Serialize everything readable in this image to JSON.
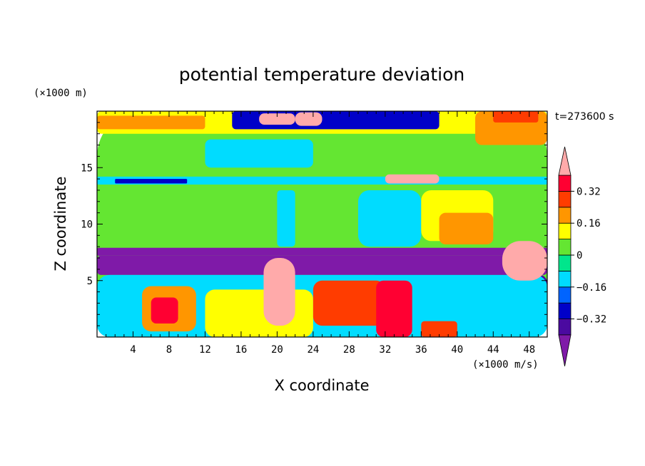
{
  "chart_data": {
    "type": "heatmap",
    "title": "potential temperature deviation",
    "xlabel": "X coordinate",
    "ylabel": "Z coordinate",
    "x_unit": "(×1000 m/s)",
    "y_unit": "(×1000 m)",
    "time_label": "t=273600 s",
    "xlim": [
      0,
      50
    ],
    "ylim": [
      0,
      20
    ],
    "x_ticks": [
      4,
      8,
      12,
      16,
      20,
      24,
      28,
      32,
      36,
      40,
      44,
      48
    ],
    "y_ticks": [
      5,
      10,
      15
    ],
    "colorbar": {
      "levels": [
        -0.4,
        -0.32,
        -0.24,
        -0.16,
        -0.08,
        0,
        0.08,
        0.16,
        0.24,
        0.32,
        0.4
      ],
      "tick_labels": [
        "0.32",
        "0.16",
        "0",
        "−0.16",
        "−0.32"
      ],
      "tick_values": [
        0.32,
        0.16,
        0,
        -0.16,
        -0.32
      ],
      "colors": {
        "under": "#7f1aa8",
        "bins": [
          "#4b0aa0",
          "#0000c8",
          "#0064ff",
          "#00dcff",
          "#00e68c",
          "#64e632",
          "#ffff00",
          "#ff9600",
          "#ff3c00",
          "#ff0032"
        ],
        "over": "#ffaaaa"
      }
    },
    "regions": [
      {
        "x": [
          0,
          50
        ],
        "z": [
          0,
          20
        ],
        "value": 0.0
      },
      {
        "x": [
          0,
          50
        ],
        "z": [
          18,
          20
        ],
        "value": 0.12
      },
      {
        "x": [
          0,
          12
        ],
        "z": [
          18.4,
          19.6
        ],
        "value": 0.18
      },
      {
        "x": [
          42,
          50
        ],
        "z": [
          17,
          20
        ],
        "value": 0.2
      },
      {
        "x": [
          44,
          49
        ],
        "z": [
          19,
          20
        ],
        "value": 0.26
      },
      {
        "x": [
          15,
          38
        ],
        "z": [
          18.4,
          20
        ],
        "value": -0.25
      },
      {
        "x": [
          12,
          24
        ],
        "z": [
          15,
          17.5
        ],
        "value": -0.1
      },
      {
        "x": [
          0,
          50
        ],
        "z": [
          13.5,
          14.2
        ],
        "value": -0.16
      },
      {
        "x": [
          2,
          10
        ],
        "z": [
          13.6,
          14
        ],
        "value": -0.3
      },
      {
        "x": [
          0,
          50
        ],
        "z": [
          7.6,
          13.4
        ],
        "value": 0.06
      },
      {
        "x": [
          20,
          22
        ],
        "z": [
          8,
          13
        ],
        "value": -0.1
      },
      {
        "x": [
          29,
          36
        ],
        "z": [
          8,
          13
        ],
        "value": -0.12
      },
      {
        "x": [
          36,
          44
        ],
        "z": [
          8.5,
          13
        ],
        "value": 0.15
      },
      {
        "x": [
          38,
          44
        ],
        "z": [
          8.2,
          11
        ],
        "value": 0.2
      },
      {
        "x": [
          0,
          50
        ],
        "z": [
          7.2,
          7.9
        ],
        "value": -0.42
      },
      {
        "x": [
          0,
          50
        ],
        "z": [
          5.5,
          7.2
        ],
        "value": -0.42
      },
      {
        "x": [
          30,
          50
        ],
        "z": [
          2,
          5.5
        ],
        "value": -0.38
      },
      {
        "x": [
          0,
          50
        ],
        "z": [
          0,
          5.5
        ],
        "value": -0.12
      },
      {
        "x": [
          5,
          11
        ],
        "z": [
          0.5,
          4.5
        ],
        "value": 0.2
      },
      {
        "x": [
          6,
          9
        ],
        "z": [
          1.2,
          3.5
        ],
        "value": 0.34
      },
      {
        "x": [
          12,
          24
        ],
        "z": [
          0,
          4.2
        ],
        "value": 0.08
      },
      {
        "x": [
          24,
          32
        ],
        "z": [
          1,
          5
        ],
        "value": 0.26
      },
      {
        "x": [
          31,
          35
        ],
        "z": [
          0,
          5
        ],
        "value": 0.34
      },
      {
        "x": [
          36,
          40
        ],
        "z": [
          0,
          1.4
        ],
        "value": 0.3
      },
      {
        "x": [
          18.5,
          22
        ],
        "z": [
          1,
          7
        ],
        "value": 0.45
      },
      {
        "x": [
          45,
          50
        ],
        "z": [
          5,
          8.5
        ],
        "value": 0.45
      },
      {
        "x": [
          18,
          22
        ],
        "z": [
          18.8,
          19.8
        ],
        "value": 0.45
      },
      {
        "x": [
          22,
          25
        ],
        "z": [
          18.7,
          19.9
        ],
        "value": 0.45
      },
      {
        "x": [
          32,
          38
        ],
        "z": [
          13.6,
          14.4
        ],
        "value": 0.45
      }
    ]
  }
}
